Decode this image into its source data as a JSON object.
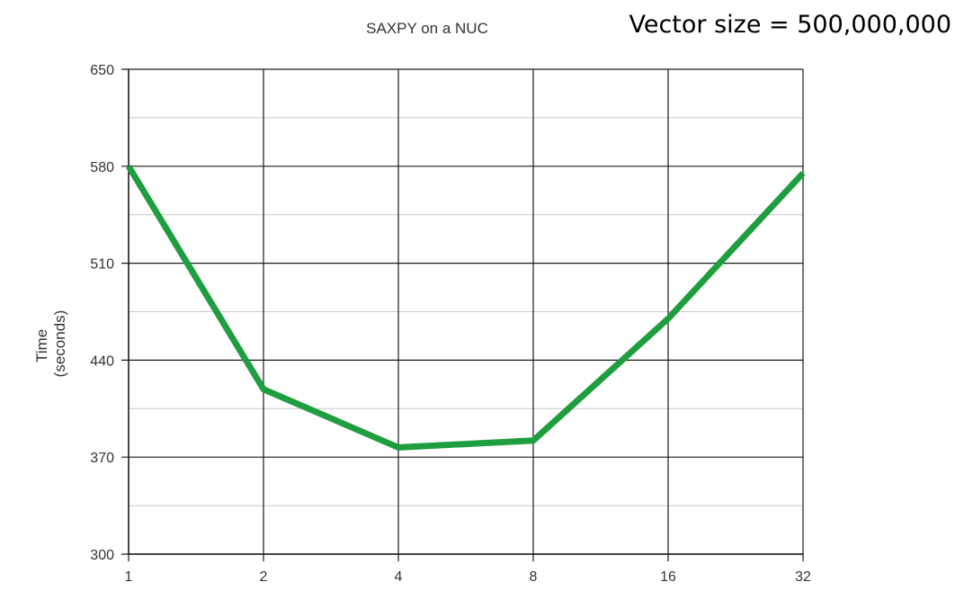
{
  "chart_data": {
    "type": "line",
    "title": "SAXPY on a NUC",
    "annotation": "Vector size = 500,000,000",
    "ylabel_lines": [
      "Time",
      "(seconds)"
    ],
    "xlabel": "",
    "categories": [
      "1",
      "2",
      "4",
      "8",
      "16",
      "32"
    ],
    "series": [
      {
        "values": [
          580,
          419,
          377,
          382,
          470,
          575
        ]
      }
    ],
    "ylim": [
      300,
      650
    ],
    "yticks": [
      300,
      370,
      440,
      510,
      580,
      650
    ],
    "minor_grid_step": 35,
    "grid": true,
    "line_color": "#1e9e3e"
  }
}
